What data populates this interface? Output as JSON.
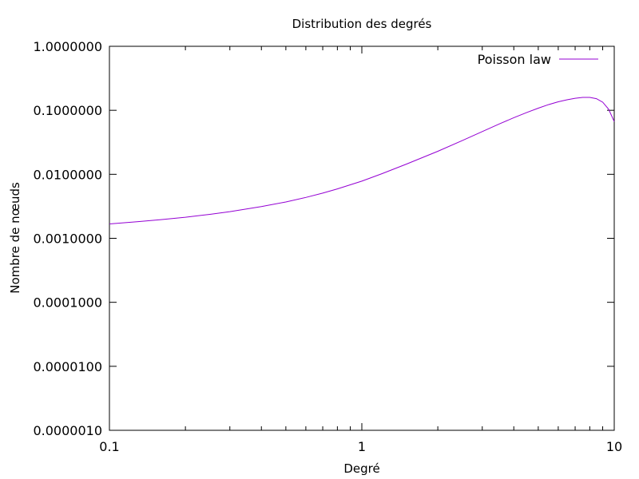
{
  "chart_data": {
    "type": "line",
    "title": "Distribution des degrés",
    "xlabel": "Degré",
    "ylabel": "Nombre de nœuds",
    "x_scale": "log",
    "y_scale": "log",
    "xlim": [
      0.1,
      10
    ],
    "ylim": [
      1e-06,
      1
    ],
    "grid": false,
    "legend_position": "top-right",
    "x_ticks": [
      {
        "value": 0.1,
        "label": "0.1"
      },
      {
        "value": 1,
        "label": "1"
      },
      {
        "value": 10,
        "label": "10"
      }
    ],
    "y_ticks": [
      {
        "value": 1e-06,
        "label": "0.0000010"
      },
      {
        "value": 1e-05,
        "label": "0.0000100"
      },
      {
        "value": 0.0001,
        "label": "0.0001000"
      },
      {
        "value": 0.001,
        "label": "0.0010000"
      },
      {
        "value": 0.01,
        "label": "0.0100000"
      },
      {
        "value": 0.1,
        "label": "0.1000000"
      },
      {
        "value": 1,
        "label": "1.0000000"
      }
    ],
    "series": [
      {
        "name": "Poisson law",
        "color": "#9400d3",
        "x": [
          0.1,
          0.13,
          0.16,
          0.2,
          0.25,
          0.3,
          0.4,
          0.5,
          0.6,
          0.7,
          0.8,
          1,
          1.2,
          1.5,
          2,
          2.5,
          3,
          3.5,
          4,
          4.5,
          5,
          5.5,
          6,
          6.5,
          7,
          7.5,
          8,
          8.5,
          9,
          9.5,
          10
        ],
        "y": [
          0.00168,
          0.00182,
          0.00196,
          0.00213,
          0.00237,
          0.00261,
          0.00313,
          0.0037,
          0.00435,
          0.00509,
          0.00591,
          0.00783,
          0.0102,
          0.0144,
          0.0229,
          0.0337,
          0.0465,
          0.0611,
          0.0766,
          0.0924,
          0.108,
          0.123,
          0.136,
          0.146,
          0.154,
          0.159,
          0.159,
          0.152,
          0.134,
          0.104,
          0.0667
        ]
      }
    ]
  }
}
